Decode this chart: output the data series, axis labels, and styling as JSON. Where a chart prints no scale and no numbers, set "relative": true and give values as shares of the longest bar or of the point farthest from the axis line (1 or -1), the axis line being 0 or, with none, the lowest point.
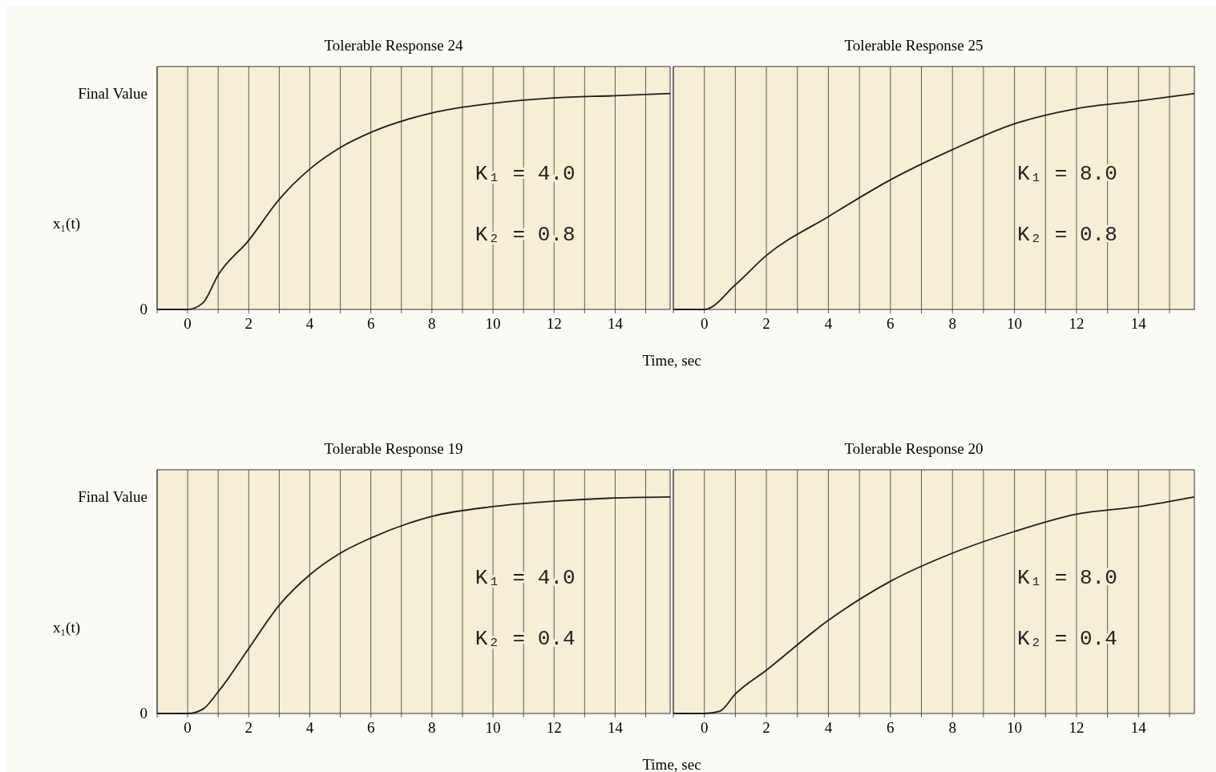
{
  "chart_data": [
    {
      "type": "line",
      "title": "Tolerable Response 24",
      "xlabel": "Time, sec",
      "ylabel": "x₁(t)",
      "relative": true,
      "xlim": [
        -1,
        15.8
      ],
      "xticks": [
        {
          "value": -1,
          "label": null
        },
        0,
        {
          "value": 1,
          "label": null
        },
        2,
        {
          "value": 3,
          "label": null
        },
        4,
        {
          "value": 5,
          "label": null
        },
        6,
        {
          "value": 7,
          "label": null
        },
        8,
        {
          "value": 9,
          "label": null
        },
        10,
        {
          "value": 11,
          "label": null
        },
        12,
        {
          "value": 13,
          "label": null
        },
        14,
        {
          "value": 15,
          "label": null
        }
      ],
      "grid": "x",
      "line_style": "solid",
      "annotations": [
        "0",
        "Final Value",
        "K₁ = 4.0",
        "K₂ = 0.8"
      ],
      "series": [
        {
          "color": "#1e1e1e",
          "x": [
            -1,
            0,
            0.5,
            1,
            2,
            3,
            4,
            5,
            6,
            8,
            10,
            12,
            14,
            15.8
          ],
          "values": [
            0,
            0,
            0.03,
            0.16,
            0.32,
            0.51,
            0.65,
            0.75,
            0.82,
            0.91,
            0.955,
            0.98,
            0.99,
            1.0
          ]
        }
      ]
    },
    {
      "type": "line",
      "title": "Tolerable Response 25",
      "relative": true,
      "xlim": [
        -1,
        15.8
      ],
      "xticks": [
        {
          "value": -1,
          "label": null
        },
        0,
        {
          "value": 1,
          "label": null
        },
        2,
        {
          "value": 3,
          "label": null
        },
        4,
        {
          "value": 5,
          "label": null
        },
        6,
        {
          "value": 7,
          "label": null
        },
        8,
        {
          "value": 9,
          "label": null
        },
        10,
        {
          "value": 11,
          "label": null
        },
        12,
        {
          "value": 13,
          "label": null
        },
        14,
        {
          "value": 15,
          "label": null
        }
      ],
      "grid": "x",
      "line_style": "solid",
      "annotations": [
        "K₁ = 8.0",
        "K₂ = 0.8"
      ],
      "series": [
        {
          "color": "#1e1e1e",
          "x": [
            -1,
            0,
            1,
            2,
            4,
            6,
            8,
            10,
            12,
            14,
            15.8
          ],
          "values": [
            0,
            0,
            0.114,
            0.25,
            0.43,
            0.6,
            0.74,
            0.86,
            0.93,
            0.966,
            1
          ]
        }
      ]
    },
    {
      "type": "line",
      "title": "Tolerable Response 19",
      "xlabel": "Time, sec",
      "ylabel": "x₁(t)",
      "relative": true,
      "xlim": [
        -1,
        15.8
      ],
      "xticks": [
        {
          "value": -1,
          "label": null
        },
        0,
        {
          "value": 1,
          "label": null
        },
        2,
        {
          "value": 3,
          "label": null
        },
        4,
        {
          "value": 5,
          "label": null
        },
        6,
        {
          "value": 7,
          "label": null
        },
        8,
        {
          "value": 9,
          "label": null
        },
        10,
        {
          "value": 11,
          "label": null
        },
        12,
        {
          "value": 13,
          "label": null
        },
        14,
        {
          "value": 15,
          "label": null
        }
      ],
      "grid": "x",
      "line_style": "solid",
      "annotations": [
        "0",
        "Final Value",
        "K₁ = 4.0",
        "K₂ = 0.4"
      ],
      "series": [
        {
          "color": "#1e1e1e",
          "x": [
            -1,
            0,
            0.5,
            1,
            2,
            3,
            4,
            5,
            6,
            8,
            10,
            12,
            14,
            15.8
          ],
          "values": [
            0,
            0,
            0.02,
            0.1,
            0.3,
            0.5,
            0.64,
            0.74,
            0.81,
            0.91,
            0.955,
            0.98,
            0.995,
            1.0
          ]
        }
      ]
    },
    {
      "type": "line",
      "title": "Tolerable Response 20",
      "relative": true,
      "xlim": [
        -1,
        15.8
      ],
      "xticks": [
        {
          "value": -1,
          "label": null
        },
        0,
        {
          "value": 1,
          "label": null
        },
        2,
        {
          "value": 3,
          "label": null
        },
        4,
        {
          "value": 5,
          "label": null
        },
        6,
        {
          "value": 7,
          "label": null
        },
        8,
        {
          "value": 9,
          "label": null
        },
        10,
        {
          "value": 11,
          "label": null
        },
        12,
        {
          "value": 13,
          "label": null
        },
        14,
        {
          "value": 15,
          "label": null
        }
      ],
      "grid": "x",
      "line_style": "solid",
      "annotations": [
        "K₁ = 8.0",
        "K₂ = 0.4"
      ],
      "series": [
        {
          "color": "#1e1e1e",
          "x": [
            -1,
            0,
            0.5,
            1,
            2,
            4,
            6,
            8,
            10,
            12,
            14,
            15.8
          ],
          "values": [
            0,
            0,
            0.011,
            0.09,
            0.2,
            0.43,
            0.61,
            0.74,
            0.84,
            0.92,
            0.955,
            1
          ]
        }
      ]
    }
  ]
}
